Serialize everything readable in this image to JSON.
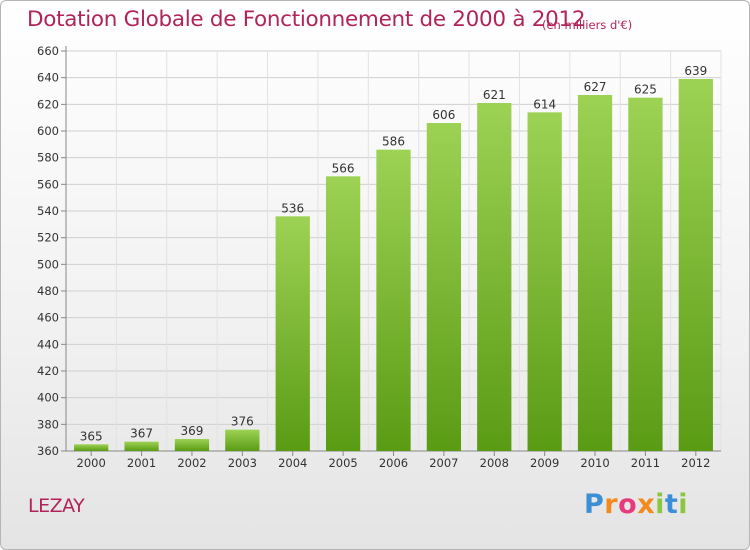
{
  "header": {
    "title": "Dotation Globale de Fonctionnement de 2000 à 2012",
    "subtitle": "(en milliers d'€)"
  },
  "footer": {
    "commune": "LEZAY",
    "brand": "Proxiti"
  },
  "colors": {
    "title": "#b0245a",
    "bar_top": "#9dd254",
    "bar_bottom": "#5a9b14",
    "grid": "#cccccc"
  },
  "chart_data": {
    "type": "bar",
    "title": "Dotation Globale de Fonctionnement de 2000 à 2012",
    "subtitle": "(en milliers d'€)",
    "xlabel": "",
    "ylabel": "",
    "categories": [
      "2000",
      "2001",
      "2002",
      "2003",
      "2004",
      "2005",
      "2006",
      "2007",
      "2008",
      "2009",
      "2010",
      "2011",
      "2012"
    ],
    "values": [
      365,
      367,
      369,
      376,
      536,
      566,
      586,
      606,
      621,
      614,
      627,
      625,
      639
    ],
    "ylim": [
      360,
      660
    ],
    "yticks": [
      360,
      380,
      400,
      420,
      440,
      460,
      480,
      500,
      520,
      540,
      560,
      580,
      600,
      620,
      640,
      660
    ],
    "grid": true,
    "legend": "none"
  }
}
